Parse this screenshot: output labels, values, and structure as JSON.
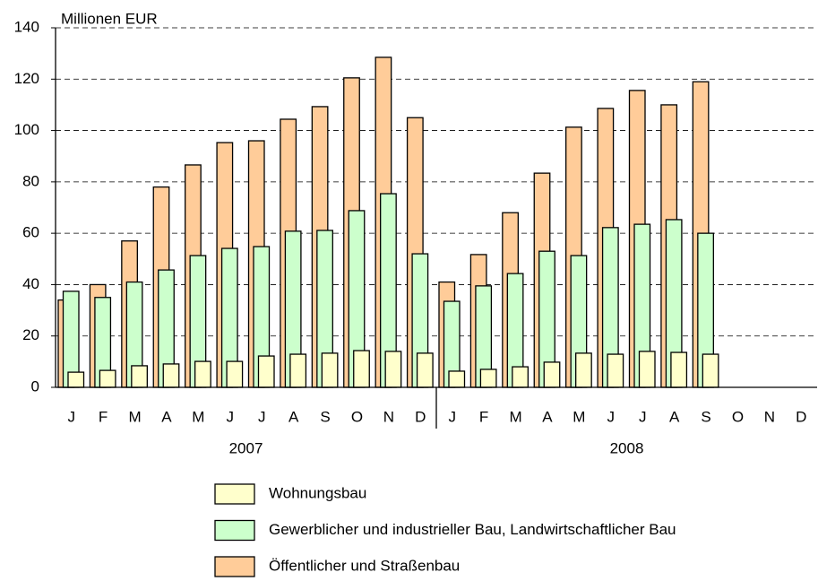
{
  "chart_data": {
    "type": "overlapping-bar",
    "y_label": "Millionen EUR",
    "categories": [
      "J",
      "F",
      "M",
      "A",
      "M",
      "J",
      "J",
      "A",
      "S",
      "O",
      "N",
      "D",
      "J",
      "F",
      "M",
      "A",
      "M",
      "J",
      "J",
      "A",
      "S",
      "O",
      "N",
      "D"
    ],
    "years": [
      "2007",
      "2008"
    ],
    "series": [
      {
        "name": "Wohnungsbau",
        "color": "#ffffcc",
        "values": [
          5.9,
          6.6,
          8.4,
          9.1,
          10.1,
          10.1,
          12.2,
          12.9,
          13.3,
          14.3,
          14,
          13.3,
          6.3,
          7,
          8,
          9.8,
          13.3,
          12.9,
          14,
          13.6,
          12.9,
          null,
          null,
          null
        ]
      },
      {
        "name": "Gewerblicher und industrieller Bau, Landwirtschaftlicher Bau",
        "color": "#ccffcc",
        "values": [
          37.4,
          35,
          41,
          45.7,
          51.3,
          54.1,
          54.8,
          60.8,
          61.1,
          68.8,
          75.4,
          52,
          33.5,
          39.5,
          44.3,
          53,
          51.3,
          62.2,
          63.5,
          65.3,
          60,
          null,
          null,
          null
        ]
      },
      {
        "name": "Öffentlicher und Straßenbau",
        "color": "#ffcc99",
        "values": [
          34,
          40,
          57,
          78,
          86.6,
          95.3,
          96,
          104.4,
          109.3,
          120.5,
          128.5,
          105,
          41,
          51.7,
          68,
          83.4,
          101.3,
          108.6,
          115.6,
          110,
          119,
          null,
          null,
          null
        ]
      }
    ],
    "ylim": [
      0,
      140
    ],
    "yticks": [
      0,
      20,
      40,
      60,
      80,
      100,
      120,
      140
    ],
    "grid": true
  }
}
